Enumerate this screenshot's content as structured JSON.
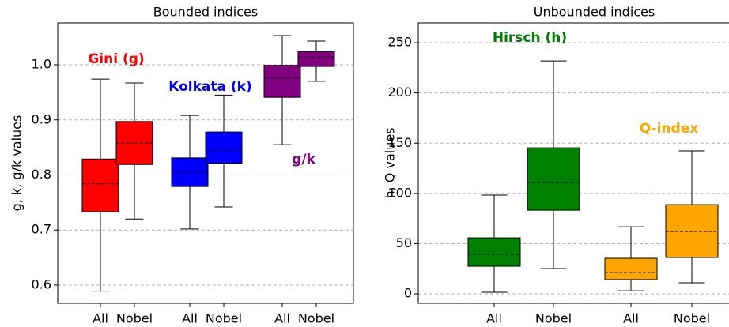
{
  "chart_data": [
    {
      "type": "box",
      "title": "Bounded indices",
      "ylabel": "g, k, g/k values",
      "categories": [
        "All",
        "Nobel",
        "All",
        "Nobel",
        "All",
        "Nobel"
      ],
      "boxes": [
        {
          "min": 0.589,
          "q1": 0.733,
          "median": 0.784,
          "q3": 0.829,
          "max": 0.974,
          "color": "#ff0000"
        },
        {
          "min": 0.72,
          "q1": 0.819,
          "median": 0.858,
          "q3": 0.897,
          "max": 0.967,
          "color": "#ff0000"
        },
        {
          "min": 0.702,
          "q1": 0.779,
          "median": 0.805,
          "q3": 0.831,
          "max": 0.908,
          "color": "#0000ff"
        },
        {
          "min": 0.742,
          "q1": 0.821,
          "median": 0.845,
          "q3": 0.878,
          "max": 0.945,
          "color": "#0000ff"
        },
        {
          "min": 0.855,
          "q1": 0.941,
          "median": 0.976,
          "q3": 0.999,
          "max": 1.053,
          "color": "#800080"
        },
        {
          "min": 0.97,
          "q1": 0.997,
          "median": 1.014,
          "q3": 1.024,
          "max": 1.043,
          "color": "#800080"
        }
      ],
      "annotations": [
        {
          "text": "Gini (g)",
          "color": "#ff0000"
        },
        {
          "text": "Kolkata (k)",
          "color": "#0000ff"
        },
        {
          "text": "g/k",
          "color": "#800080"
        }
      ],
      "ylim": [
        0.567,
        1.076
      ],
      "yticks": [
        0.6,
        0.7,
        0.8,
        0.9,
        {
          "value": 1,
          "label": "1.0"
        }
      ],
      "grid": true
    },
    {
      "type": "box",
      "title": "Unbounded indices",
      "ylabel": "h, Q values",
      "categories": [
        "All",
        "Nobel",
        "All",
        "Nobel"
      ],
      "boxes": [
        {
          "min": 1.6,
          "q1": 27.5,
          "median": 39.3,
          "q3": 55.8,
          "max": 98.3,
          "color": "#008000"
        },
        {
          "min": 25.2,
          "q1": 83.3,
          "median": 110.8,
          "q3": 145.4,
          "max": 231.9,
          "color": "#008000"
        },
        {
          "min": 3.1,
          "q1": 14.2,
          "median": 21.2,
          "q3": 35.4,
          "max": 66.8,
          "color": "#ffa500"
        },
        {
          "min": 11,
          "q1": 36.2,
          "median": 62.1,
          "q3": 88.8,
          "max": 142.3,
          "color": "#ffa500"
        }
      ],
      "annotations": [
        {
          "text": "Hirsch (h)",
          "color": "#008000"
        },
        {
          "text": "Q-index",
          "color": "#ffa500"
        }
      ],
      "ylim": [
        -9.4,
        269.7
      ],
      "yticks": [
        0,
        50,
        100,
        150,
        200,
        250
      ],
      "grid": true
    }
  ]
}
